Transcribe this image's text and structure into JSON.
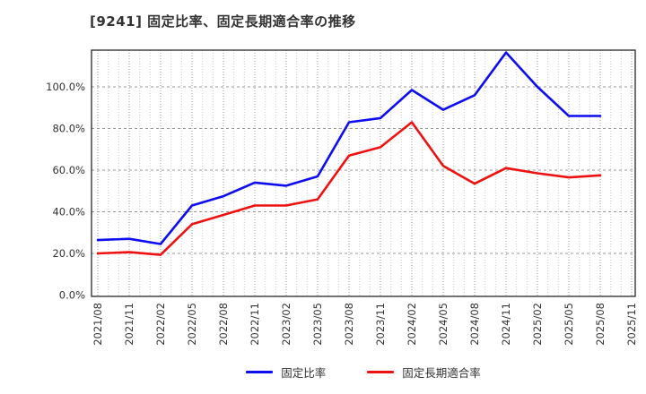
{
  "page": {
    "background": "#ffffff"
  },
  "chart_data": {
    "type": "line",
    "title": "[9241]  固定比率、固定長期適合率の推移",
    "x_labels": [
      "2021/08",
      "2021/11",
      "2022/02",
      "2022/05",
      "2022/08",
      "2022/11",
      "2023/02",
      "2023/05",
      "2023/08",
      "2023/11",
      "2024/02",
      "2024/05",
      "2024/08",
      "2024/11",
      "2025/02",
      "2025/05",
      "2025/08",
      "2025/11"
    ],
    "categories": [
      "2021/08",
      "2021/11",
      "2022/02",
      "2022/05",
      "2022/08",
      "2022/11",
      "2023/02",
      "2023/05",
      "2023/08",
      "2023/11",
      "2024/02",
      "2024/05",
      "2024/08",
      "2024/11",
      "2025/02",
      "2025/05",
      "2025/08"
    ],
    "series": [
      {
        "name": "固定比率",
        "color": "#0d0dee",
        "values": [
          26.4,
          27.0,
          24.5,
          43.0,
          47.5,
          54.0,
          52.5,
          57.0,
          83.0,
          85.0,
          98.5,
          89.0,
          96.0,
          116.5,
          100.0,
          86.0,
          86.0
        ]
      },
      {
        "name": "固定長期適合率",
        "color": "#ee1111",
        "values": [
          20.0,
          20.6,
          19.3,
          34.0,
          38.5,
          43.0,
          43.0,
          46.0,
          67.0,
          71.0,
          83.0,
          62.0,
          53.5,
          61.0,
          58.5,
          56.5,
          57.5
        ]
      }
    ],
    "y_ticks": [
      {
        "label": "0.0%",
        "value": 0
      },
      {
        "label": "20.0%",
        "value": 20
      },
      {
        "label": "40.0%",
        "value": 40
      },
      {
        "label": "60.0%",
        "value": 60
      },
      {
        "label": "80.0%",
        "value": 80
      },
      {
        "label": "100.0%",
        "value": 100
      }
    ],
    "ylim": [
      -1,
      118.5
    ],
    "grid": "both",
    "legend_position": "bottom-center",
    "colors": {
      "spine": "#262626",
      "h_grid": "#999999",
      "v_grid_major": "#9a9a9a",
      "v_grid_minor": "#cfcfcf",
      "tick_label": "#333333"
    }
  }
}
